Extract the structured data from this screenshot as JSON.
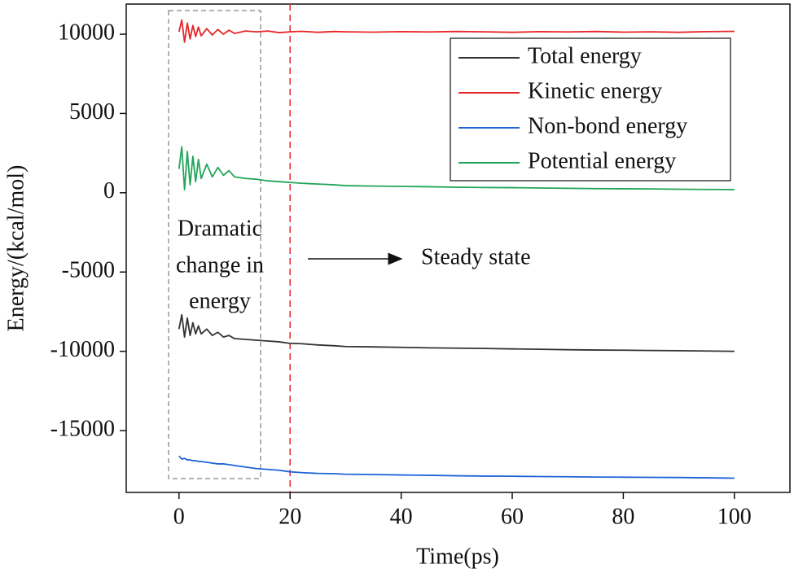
{
  "chart_data": {
    "type": "line",
    "x_label": "Time(ps)",
    "y_label": "Energy/(kcal/mol)",
    "x": [
      0,
      0.5,
      1,
      1.5,
      2,
      2.5,
      3,
      3.5,
      4,
      5,
      6,
      7,
      8,
      9,
      10,
      12,
      14,
      16,
      18,
      20,
      22,
      25,
      28,
      30,
      35,
      40,
      45,
      50,
      55,
      60,
      65,
      70,
      75,
      80,
      85,
      90,
      95,
      100
    ],
    "series": [
      {
        "name": "Total energy",
        "color": "#333333",
        "values": [
          -8600,
          -7700,
          -9100,
          -7900,
          -9000,
          -8200,
          -8900,
          -8400,
          -8900,
          -8600,
          -9000,
          -8800,
          -9100,
          -9000,
          -9200,
          -9250,
          -9300,
          -9350,
          -9400,
          -9500,
          -9520,
          -9600,
          -9650,
          -9700,
          -9720,
          -9750,
          -9780,
          -9800,
          -9820,
          -9850,
          -9870,
          -9900,
          -9920,
          -9930,
          -9950,
          -9960,
          -9980,
          -10000
        ]
      },
      {
        "name": "Kinetic energy",
        "color": "#e8262a",
        "values": [
          10150,
          10900,
          9500,
          10700,
          9700,
          10550,
          9850,
          10450,
          9900,
          10350,
          9950,
          10300,
          10000,
          10250,
          10050,
          10200,
          10150,
          10200,
          10100,
          10150,
          10180,
          10120,
          10170,
          10150,
          10130,
          10160,
          10140,
          10170,
          10150,
          10120,
          10160,
          10140,
          10170,
          10130,
          10150,
          10120,
          10160,
          10180
        ]
      },
      {
        "name": "Non-bond energy",
        "color": "#1f63d8",
        "values": [
          -16600,
          -16800,
          -16750,
          -16850,
          -16850,
          -16900,
          -16900,
          -16950,
          -16950,
          -17000,
          -17050,
          -17100,
          -17100,
          -17150,
          -17200,
          -17300,
          -17400,
          -17450,
          -17500,
          -17600,
          -17650,
          -17700,
          -17720,
          -17750,
          -17770,
          -17800,
          -17820,
          -17850,
          -17870,
          -17880,
          -17900,
          -17910,
          -17930,
          -17940,
          -17950,
          -17960,
          -17980,
          -18000
        ]
      },
      {
        "name": "Potential energy",
        "color": "#21a55a",
        "values": [
          1500,
          2900,
          200,
          2600,
          500,
          2300,
          700,
          2100,
          900,
          1800,
          1000,
          1600,
          1100,
          1400,
          1000,
          900,
          850,
          750,
          700,
          650,
          600,
          550,
          500,
          450,
          420,
          400,
          380,
          350,
          330,
          320,
          300,
          280,
          260,
          250,
          240,
          220,
          210,
          200
        ]
      }
    ],
    "xlim": [
      -9.5,
      110
    ],
    "ylim": [
      -18900,
      11900
    ],
    "xticks": [
      0,
      20,
      40,
      60,
      80,
      100
    ],
    "yticks": [
      -15000,
      -10000,
      -5000,
      0,
      5000,
      10000
    ],
    "vline": {
      "x": 20,
      "color": "#e8262a"
    },
    "annotations": {
      "left": [
        "Dramatic",
        "change in",
        "energy"
      ],
      "right": "Steady state"
    },
    "legend": "upper right"
  }
}
